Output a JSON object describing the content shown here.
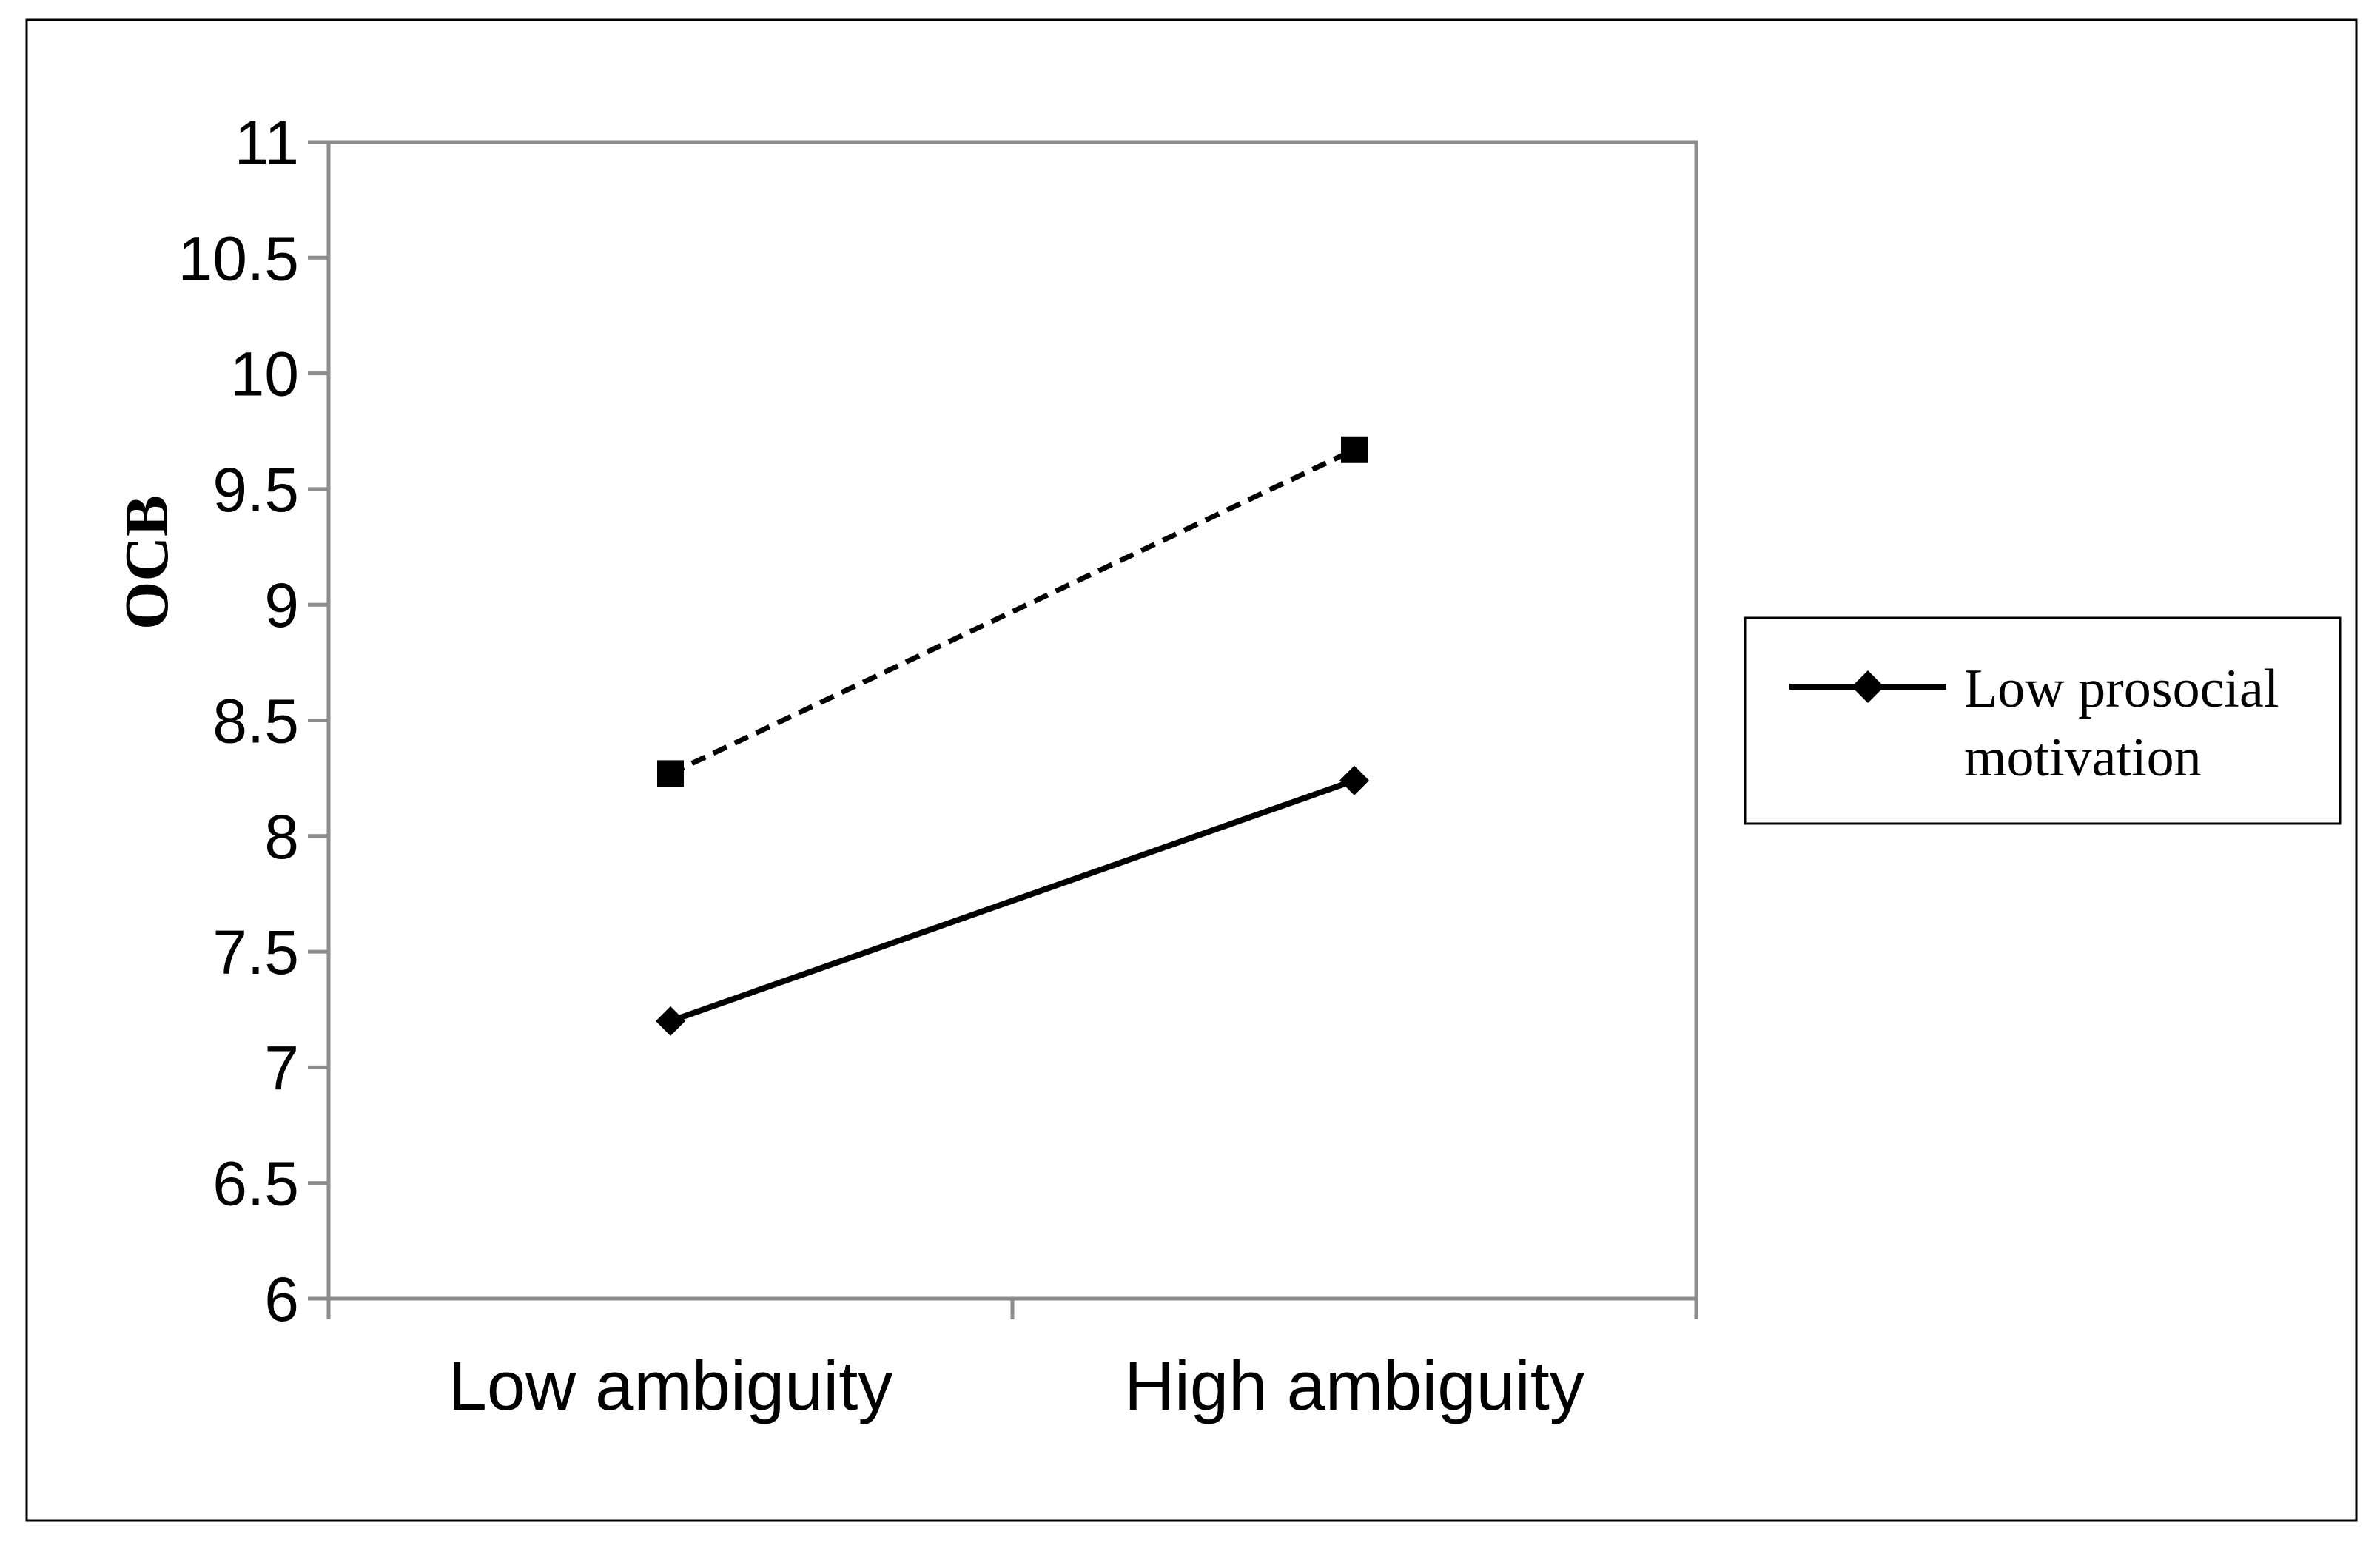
{
  "chart_data": {
    "type": "line",
    "title": "",
    "xlabel": "",
    "ylabel": "OCB",
    "categories": [
      "Low ambiguity",
      "High ambiguity"
    ],
    "ylim": [
      6,
      11
    ],
    "yticks": [
      "6",
      "6.5",
      "7",
      "7.5",
      "8",
      "8.5",
      "9",
      "9.5",
      "10",
      "10.5",
      "11"
    ],
    "grid": false,
    "legend_position": "right",
    "series": [
      {
        "name": "Low prosocial motivation",
        "name_lines": [
          "Low prosocial",
          "motivation"
        ],
        "values": [
          7.2,
          8.24
        ],
        "line_style": "solid",
        "marker": "diamond",
        "color": "#000000"
      },
      {
        "values": [
          8.27,
          9.67
        ],
        "line_style": "dashed",
        "marker": "square",
        "color": "#000000"
      }
    ]
  }
}
